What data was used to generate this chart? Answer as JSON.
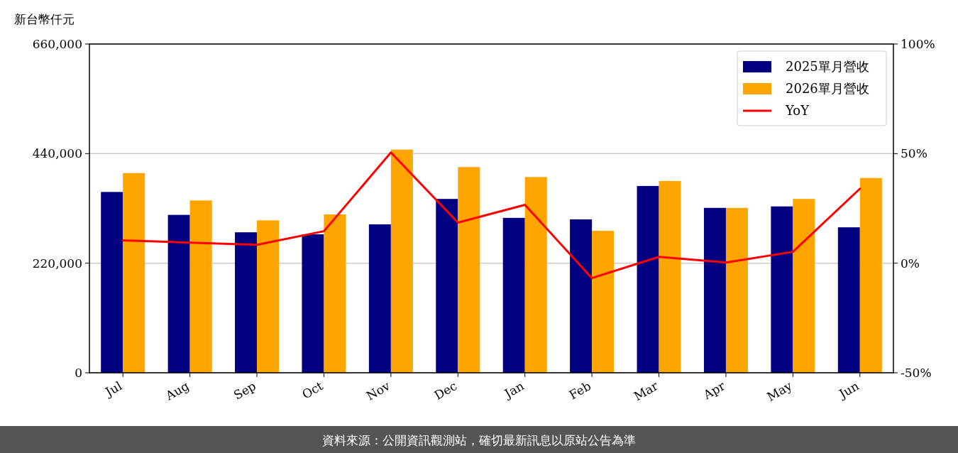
{
  "chart_data": {
    "type": "bar",
    "ylabel": "新台幣仟元",
    "categories": [
      "Jul",
      "Aug",
      "Sep",
      "Oct",
      "Nov",
      "Dec",
      "Jan",
      "Feb",
      "Mar",
      "Apr",
      "May",
      "Jun"
    ],
    "series": [
      {
        "name": "2025單月營收",
        "color": "#000080",
        "values": [
          363000,
          317000,
          282000,
          278000,
          298000,
          349000,
          311000,
          308000,
          375000,
          331000,
          334000,
          292000
        ]
      },
      {
        "name": "2026單月營收",
        "color": "#ffa500",
        "values": [
          401000,
          346000,
          306000,
          318000,
          448000,
          413000,
          393000,
          285000,
          385000,
          331000,
          349000,
          391000
        ]
      },
      {
        "name": "YoY",
        "type": "line",
        "axis": "y2",
        "color": "#ff0000",
        "values": [
          10.4,
          9.4,
          8.4,
          14.6,
          50.5,
          18.5,
          26.6,
          -6.8,
          2.9,
          0.3,
          5.2,
          34.0
        ]
      }
    ],
    "ylim": [
      0,
      660000
    ],
    "yticks": [
      {
        "value": 0,
        "label": "0"
      },
      {
        "value": 220000,
        "label": "220,000"
      },
      {
        "value": 440000,
        "label": "440,000"
      },
      {
        "value": 660000,
        "label": "660,000"
      }
    ],
    "y2lim": [
      -50,
      100
    ],
    "y2ticks": [
      {
        "value": -50,
        "label": "-50%"
      },
      {
        "value": 0,
        "label": "0%"
      },
      {
        "value": 50,
        "label": "50%"
      },
      {
        "value": 100,
        "label": "100%"
      }
    ],
    "grid": "y",
    "legend": "top right",
    "annotations": [
      "資料來源：公開資訊觀測站，確切最新訊息以原站公告為準"
    ]
  }
}
